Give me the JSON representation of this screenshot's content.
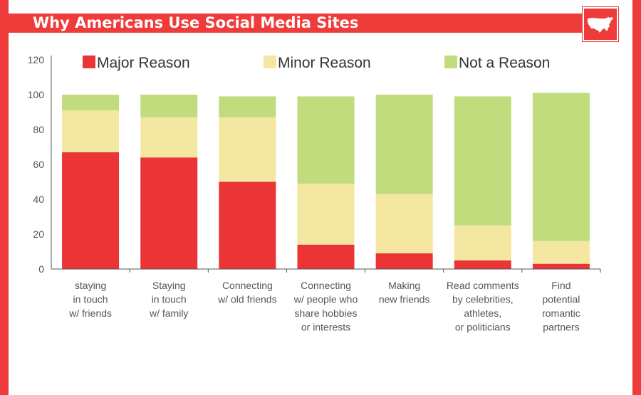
{
  "header": {
    "title": "Why Americans Use Social Media Sites",
    "badge_icon": "usa-map-icon"
  },
  "colors": {
    "accent": "#ef3b39",
    "major": "#ea3436",
    "minor": "#f4e7a2",
    "not": "#c0dc7c",
    "axis": "#555555"
  },
  "chart_data": {
    "type": "bar",
    "stacked": true,
    "title": "Why Americans Use Social Media Sites",
    "xlabel": "",
    "ylabel": "",
    "ylim": [
      0,
      120
    ],
    "yticks": [
      0,
      20,
      40,
      60,
      80,
      100,
      120
    ],
    "grid": false,
    "legend_position": "top",
    "categories": [
      [
        "staying",
        "in touch",
        "w/ friends"
      ],
      [
        "Staying",
        "in touch",
        "w/ family"
      ],
      [
        "Connecting",
        "w/ old friends"
      ],
      [
        "Connecting",
        "w/ people who",
        "share hobbies",
        "or interests"
      ],
      [
        "Making",
        "new friends"
      ],
      [
        "Read comments",
        "by celebrities,",
        "athletes,",
        "or politicians"
      ],
      [
        "Find",
        "potential",
        "romantic",
        "partners"
      ]
    ],
    "series": [
      {
        "name": "Major Reason",
        "values": [
          67,
          64,
          50,
          14,
          9,
          5,
          3
        ]
      },
      {
        "name": "Minor Reason",
        "values": [
          24,
          23,
          37,
          35,
          34,
          20,
          13
        ]
      },
      {
        "name": "Not a Reason",
        "values": [
          9,
          13,
          12,
          50,
          57,
          74,
          85
        ]
      }
    ]
  }
}
